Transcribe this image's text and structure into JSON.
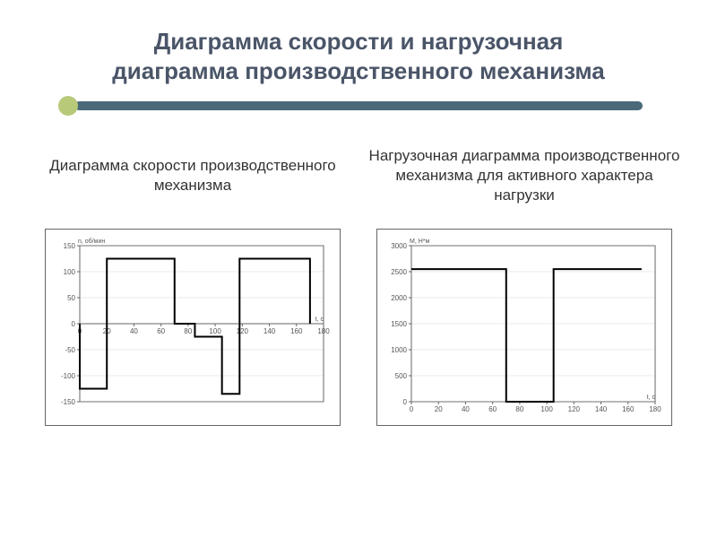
{
  "title_line1": "Диаграмма скорости и нагрузочная",
  "title_line2": "диаграмма производственного механизма",
  "left": {
    "subtitle": "Диаграмма скорости производственного механизма",
    "chart": {
      "type": "step-line",
      "xlim": [
        0,
        180
      ],
      "ylim": [
        -150,
        150
      ],
      "xticks": [
        0,
        20,
        40,
        60,
        80,
        100,
        120,
        140,
        160,
        180
      ],
      "yticks": [
        -150,
        -100,
        -50,
        0,
        50,
        100,
        150
      ],
      "y_unit": "n, об/мин",
      "x_unit": "t, с",
      "line_color": "#000000",
      "line_width": 2,
      "grid_color": "#999999",
      "border_color": "#666666",
      "points": [
        [
          0,
          0
        ],
        [
          0,
          -125
        ],
        [
          20,
          -125
        ],
        [
          20,
          125
        ],
        [
          70,
          125
        ],
        [
          70,
          0
        ],
        [
          85,
          0
        ],
        [
          85,
          -25
        ],
        [
          105,
          -25
        ],
        [
          105,
          -135
        ],
        [
          118,
          -135
        ],
        [
          118,
          125
        ],
        [
          170,
          125
        ],
        [
          170,
          0
        ]
      ]
    }
  },
  "right": {
    "subtitle": "Нагрузочная диаграмма производственного механизма для активного характера нагрузки",
    "chart": {
      "type": "step-line",
      "xlim": [
        0,
        180
      ],
      "ylim": [
        0,
        3000
      ],
      "xticks": [
        0,
        20,
        40,
        60,
        80,
        100,
        120,
        140,
        160,
        180
      ],
      "yticks": [
        0,
        500,
        1000,
        1500,
        2000,
        2500,
        3000
      ],
      "y_unit": "M, Н*м",
      "x_unit": "t, с",
      "line_color": "#000000",
      "line_width": 2,
      "grid_color": "#999999",
      "border_color": "#666666",
      "points": [
        [
          0,
          2550
        ],
        [
          70,
          2550
        ],
        [
          70,
          0
        ],
        [
          105,
          0
        ],
        [
          105,
          2550
        ],
        [
          170,
          2550
        ]
      ]
    }
  }
}
